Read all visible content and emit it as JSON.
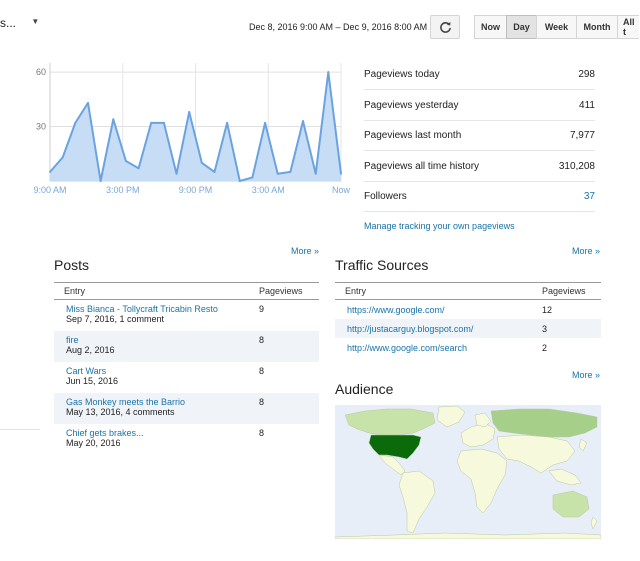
{
  "header": {
    "blog_selector_label": "s...",
    "date_range": "Dec 8, 2016 9:00 AM – Dec 9, 2016 8:00 AM",
    "range_buttons": [
      "Now",
      "Day",
      "Week",
      "Month",
      "All t"
    ],
    "active_range": "Day"
  },
  "icons": {
    "refresh": "refresh-icon",
    "dropdown": "caret-down-icon"
  },
  "chart_data": {
    "type": "area",
    "y_ticks": [
      "60",
      "30"
    ],
    "x_ticks": [
      "9:00 AM",
      "3:00 PM",
      "9:00 PM",
      "3:00 AM",
      "Now"
    ],
    "ylim": [
      0,
      65
    ],
    "values": [
      5,
      13,
      32,
      43,
      0,
      34,
      11,
      7,
      32,
      32,
      4,
      38,
      10,
      5,
      32,
      0,
      2,
      32,
      4,
      5,
      33,
      4,
      60,
      4
    ],
    "fill_color": "#c7dcf5",
    "line_color": "#6aa3e0",
    "grid": true
  },
  "stats": [
    {
      "label": "Pageviews today",
      "value": "298"
    },
    {
      "label": "Pageviews yesterday",
      "value": "411"
    },
    {
      "label": "Pageviews last month",
      "value": "7,977"
    },
    {
      "label": "Pageviews all time history",
      "value": "310,208"
    },
    {
      "label": "Followers",
      "value": "37"
    }
  ],
  "manage_link": "Manage tracking your own pageviews",
  "more_label": "More »",
  "posts": {
    "title": "Posts",
    "columns": [
      "Entry",
      "Pageviews"
    ],
    "rows": [
      {
        "title": "Miss Bianca - Tollycraft Tricabin Resto",
        "meta": "Sep 7, 2016, 1 comment",
        "views": "9"
      },
      {
        "title": "fire",
        "meta": "Aug 2, 2016",
        "views": "8"
      },
      {
        "title": "Cart Wars",
        "meta": "Jun 15, 2016",
        "views": "8"
      },
      {
        "title": "Gas Monkey meets the Barrio",
        "meta": "May 13, 2016, 4 comments",
        "views": "8"
      },
      {
        "title": "Chief gets brakes...",
        "meta": "May 20, 2016",
        "views": "8"
      }
    ]
  },
  "traffic": {
    "title": "Traffic Sources",
    "columns": [
      "Entry",
      "Pageviews"
    ],
    "rows": [
      {
        "url": "https://www.google.com/",
        "views": "12"
      },
      {
        "url": "http://justacarguy.blogspot.com/",
        "views": "3"
      },
      {
        "url": "http://www.google.com/search",
        "views": "2"
      }
    ]
  },
  "audience": {
    "title": "Audience",
    "colors": {
      "ocean": "#e8eef7",
      "no_data": "#f7f9dd",
      "low": "#c8e3a9",
      "mid": "#a6cf8a",
      "high": "#0b6b0b"
    }
  }
}
